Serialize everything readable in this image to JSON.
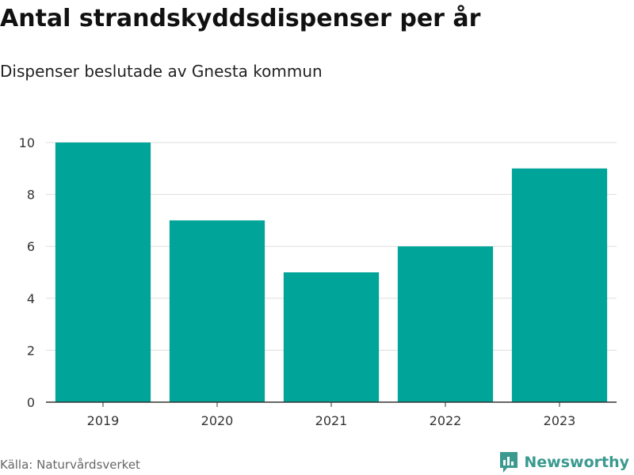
{
  "header": {
    "title": "Antal strandskyddsdispenser per år",
    "subtitle": "Dispenser beslutade av Gnesta kommun"
  },
  "footer": {
    "source": "Källa: Naturvårdsverket",
    "brand": "Newsworthy",
    "brand_icon": "bar-chart-icon"
  },
  "colors": {
    "bar": "#00a499",
    "grid": "#dddddd",
    "axis": "#333333",
    "brand": "#3a9a8f"
  },
  "chart_data": {
    "type": "bar",
    "title": "Antal strandskyddsdispenser per år",
    "subtitle": "Dispenser beslutade av Gnesta kommun",
    "categories": [
      "2019",
      "2020",
      "2021",
      "2022",
      "2023"
    ],
    "values": [
      10,
      7,
      5,
      6,
      9
    ],
    "ylim": [
      0,
      10
    ],
    "yticks": [
      0,
      2,
      4,
      6,
      8,
      10
    ],
    "xlabel": "",
    "ylabel": "",
    "grid": true
  }
}
